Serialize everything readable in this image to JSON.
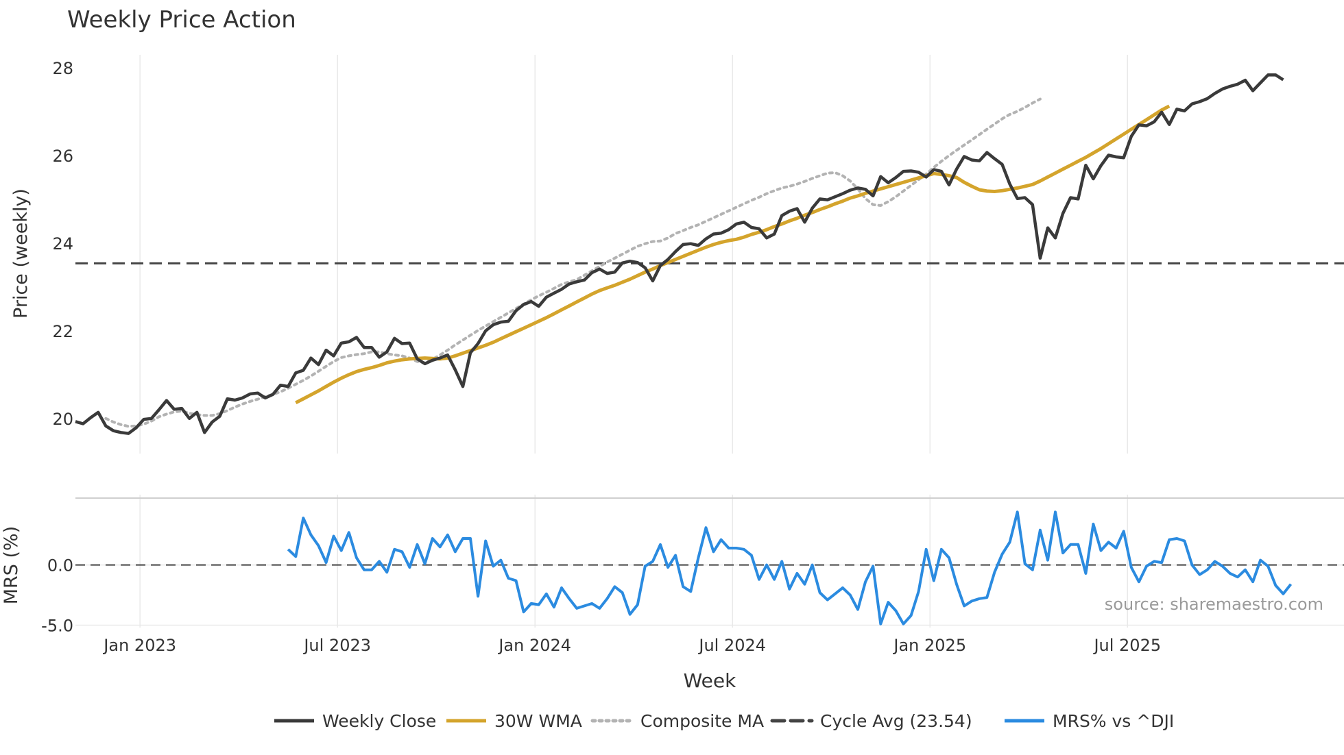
{
  "chart_data": {
    "type": "line",
    "title": "Weekly Price Action",
    "xlabel": "Week",
    "source": "source: sharemaestro.com",
    "x_ticks": [
      "Jan 2023",
      "Jul 2023",
      "Jan 2024",
      "Jul 2024",
      "Jan 2025",
      "Jul 2025"
    ],
    "legend": {
      "position": "bottom-center",
      "entries": [
        "Weekly Close",
        "30W WMA",
        "Composite MA",
        "Cycle Avg (23.54)",
        "MRS% vs ^DJI"
      ]
    },
    "colors": {
      "close": "#3a3a3a",
      "wma": "#d4a42c",
      "composite": "#b3b3b3",
      "cycle": "#444444",
      "mrs": "#2b8be0",
      "grid": "#e9e9e9",
      "text": "#333333",
      "source": "#9a9a9a"
    },
    "price_panel": {
      "ylabel": "Price (weekly)",
      "ylim": [
        19.2,
        28.3
      ],
      "y_ticks": [
        "20",
        "22",
        "24",
        "26",
        "28"
      ],
      "cycle_avg": 23.54
    },
    "mrs_panel": {
      "ylabel": "MRS (%)",
      "ylim": [
        -5.2,
        5.5
      ],
      "y_ticks": [
        "-5.0",
        "0.0"
      ]
    },
    "series": [
      {
        "name": "Weekly Close",
        "style": "solid",
        "start_week": 0,
        "values": [
          19.93,
          19.88,
          20.02,
          20.14,
          19.83,
          19.72,
          19.68,
          19.66,
          19.79,
          19.98,
          20.0,
          20.2,
          20.41,
          20.21,
          20.23,
          20.0,
          20.14,
          19.68,
          19.92,
          20.05,
          20.45,
          20.42,
          20.47,
          20.56,
          20.58,
          20.47,
          20.55,
          20.76,
          20.73,
          21.04,
          21.1,
          21.38,
          21.23,
          21.56,
          21.43,
          21.72,
          21.75,
          21.85,
          21.62,
          21.62,
          21.4,
          21.52,
          21.83,
          21.71,
          21.72,
          21.36,
          21.25,
          21.33,
          21.38,
          21.45,
          21.11,
          20.73,
          21.5,
          21.71,
          22.0,
          22.14,
          22.2,
          22.22,
          22.46,
          22.6,
          22.67,
          22.56,
          22.77,
          22.86,
          22.95,
          23.07,
          23.12,
          23.16,
          23.33,
          23.41,
          23.31,
          23.34,
          23.55,
          23.59,
          23.56,
          23.44,
          23.14,
          23.49,
          23.63,
          23.81,
          23.97,
          23.99,
          23.95,
          24.1,
          24.21,
          24.23,
          24.31,
          24.44,
          24.48,
          24.36,
          24.33,
          24.12,
          24.21,
          24.63,
          24.73,
          24.79,
          24.48,
          24.8,
          25.01,
          24.99,
          25.06,
          25.13,
          25.21,
          25.26,
          25.23,
          25.08,
          25.52,
          25.38,
          25.5,
          25.64,
          25.65,
          25.62,
          25.51,
          25.68,
          25.64,
          25.33,
          25.69,
          25.98,
          25.9,
          25.88,
          26.07,
          25.93,
          25.8,
          25.35,
          25.02,
          25.04,
          24.88,
          23.66,
          24.35,
          24.12,
          24.68,
          25.04,
          25.01,
          25.78,
          25.47,
          25.77,
          26.01,
          25.97,
          25.95,
          26.44,
          26.7,
          26.68,
          26.77,
          26.99,
          26.71,
          27.06,
          27.02,
          27.18,
          27.23,
          27.3,
          27.42,
          27.52,
          27.58,
          27.63,
          27.72,
          27.48,
          27.66,
          27.84,
          27.84,
          27.73
        ]
      },
      {
        "name": "30W WMA",
        "style": "solid",
        "start_week": 29,
        "values": [
          20.36,
          20.45,
          20.54,
          20.63,
          20.73,
          20.83,
          20.92,
          21.0,
          21.07,
          21.12,
          21.16,
          21.21,
          21.27,
          21.31,
          21.34,
          21.36,
          21.37,
          21.38,
          21.37,
          21.36,
          21.38,
          21.43,
          21.49,
          21.55,
          21.61,
          21.67,
          21.74,
          21.82,
          21.9,
          21.98,
          22.06,
          22.14,
          22.22,
          22.3,
          22.39,
          22.48,
          22.57,
          22.66,
          22.75,
          22.84,
          22.92,
          22.98,
          23.04,
          23.11,
          23.18,
          23.26,
          23.34,
          23.41,
          23.49,
          23.56,
          23.63,
          23.7,
          23.77,
          23.84,
          23.91,
          23.97,
          24.02,
          24.06,
          24.09,
          24.14,
          24.2,
          24.25,
          24.31,
          24.38,
          24.44,
          24.51,
          24.57,
          24.64,
          24.7,
          24.77,
          24.83,
          24.9,
          24.96,
          25.03,
          25.08,
          25.14,
          25.19,
          25.24,
          25.29,
          25.34,
          25.39,
          25.44,
          25.49,
          25.54,
          25.59,
          25.57,
          25.54,
          25.5,
          25.39,
          25.3,
          25.22,
          25.19,
          25.18,
          25.2,
          25.23,
          25.26,
          25.3,
          25.34,
          25.42,
          25.51,
          25.6,
          25.69,
          25.78,
          25.87,
          25.96,
          26.06,
          26.16,
          26.27,
          26.38,
          26.49,
          26.6,
          26.71,
          26.82,
          26.93,
          27.04,
          27.13
        ]
      },
      {
        "name": "Composite MA",
        "style": "dotted",
        "start_week": 4,
        "values": [
          20.0,
          19.92,
          19.86,
          19.82,
          19.83,
          19.87,
          19.94,
          20.04,
          20.1,
          20.15,
          20.17,
          20.12,
          20.09,
          20.07,
          20.07,
          20.11,
          20.18,
          20.26,
          20.33,
          20.39,
          20.44,
          20.5,
          20.55,
          20.61,
          20.69,
          20.78,
          20.87,
          20.97,
          21.08,
          21.19,
          21.3,
          21.39,
          21.43,
          21.46,
          21.48,
          21.52,
          21.52,
          21.48,
          21.45,
          21.43,
          21.38,
          21.3,
          21.27,
          21.35,
          21.45,
          21.56,
          21.68,
          21.79,
          21.9,
          22.01,
          22.11,
          22.21,
          22.31,
          22.41,
          22.51,
          22.61,
          22.71,
          22.8,
          22.88,
          22.97,
          23.06,
          23.12,
          23.17,
          23.27,
          23.37,
          23.47,
          23.57,
          23.66,
          23.75,
          23.84,
          23.93,
          23.99,
          24.04,
          24.05,
          24.12,
          24.22,
          24.29,
          24.36,
          24.42,
          24.5,
          24.58,
          24.66,
          24.74,
          24.82,
          24.9,
          24.98,
          25.05,
          25.13,
          25.2,
          25.26,
          25.3,
          25.35,
          25.41,
          25.48,
          25.54,
          25.6,
          25.61,
          25.54,
          25.42,
          25.24,
          25.02,
          24.88,
          24.86,
          24.95,
          25.06,
          25.19,
          25.32,
          25.45,
          25.58,
          25.73,
          25.87,
          26.0,
          26.12,
          26.24,
          26.36,
          26.48,
          26.6,
          26.72,
          26.84,
          26.94,
          27.01,
          27.1,
          27.2,
          27.29
        ]
      },
      {
        "name": "MRS% vs ^DJI",
        "style": "solid",
        "start_week": 28,
        "values": [
          1.3,
          0.7,
          3.9,
          2.5,
          1.6,
          0.2,
          2.4,
          1.2,
          2.7,
          0.6,
          -0.4,
          -0.4,
          0.3,
          -0.6,
          1.3,
          1.1,
          -0.2,
          1.7,
          0.1,
          2.2,
          1.5,
          2.5,
          1.1,
          2.2,
          2.2,
          -2.6,
          2.0,
          -0.1,
          0.4,
          -1.1,
          -1.3,
          -3.9,
          -3.2,
          -3.3,
          -2.4,
          -3.5,
          -1.9,
          -2.8,
          -3.6,
          -3.4,
          -3.2,
          -3.6,
          -2.8,
          -1.8,
          -2.3,
          -4.1,
          -3.3,
          -0.1,
          0.3,
          1.7,
          -0.2,
          0.8,
          -1.8,
          -2.2,
          0.6,
          3.1,
          1.1,
          2.1,
          1.4,
          1.4,
          1.3,
          0.8,
          -1.2,
          0.0,
          -1.2,
          0.3,
          -2.0,
          -0.7,
          -1.6,
          0.0,
          -2.3,
          -2.9,
          -2.4,
          -1.9,
          -2.5,
          -3.7,
          -1.4,
          -0.1,
          -4.9,
          -3.1,
          -3.8,
          -4.9,
          -4.2,
          -2.2,
          1.3,
          -1.3,
          1.3,
          0.6,
          -1.6,
          -3.4,
          -3.0,
          -2.8,
          -2.7,
          -0.6,
          0.9,
          1.9,
          4.4,
          0.1,
          -0.4,
          2.9,
          0.4,
          4.4,
          1.0,
          1.7,
          1.7,
          -0.7,
          3.4,
          1.2,
          1.9,
          1.4,
          2.8,
          -0.2,
          -1.4,
          -0.1,
          0.3,
          0.2,
          2.1,
          2.2,
          2.0,
          0.0,
          -0.8,
          -0.4,
          0.3,
          -0.1,
          -0.7,
          -1.0,
          -0.4,
          -1.4,
          0.4,
          -0.1,
          -1.7,
          -2.4,
          -1.6
        ]
      }
    ]
  }
}
